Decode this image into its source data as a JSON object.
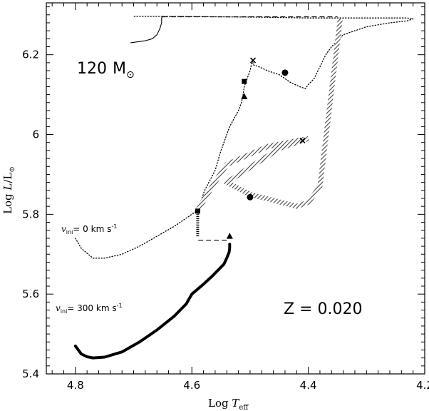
{
  "chart_data": {
    "type": "line",
    "title": "",
    "xlabel": "Log T_eff",
    "ylabel": "Log L/L_sun",
    "xlim": [
      4.85,
      4.2
    ],
    "ylim": [
      5.4,
      6.33
    ],
    "x_reversed": true,
    "x_ticks": [
      4.8,
      4.6,
      4.4,
      4.2
    ],
    "y_ticks": [
      5.4,
      5.6,
      5.8,
      6.0,
      6.2
    ],
    "x_tick_labels": [
      "4.8",
      "4.6",
      "4.4",
      "4.2"
    ],
    "y_tick_labels": [
      "5.4",
      "5.6",
      "5.8",
      "6",
      "6.2"
    ],
    "annotations": {
      "mass_value": "120",
      "mass_unit": "M",
      "metallicity": "Z  =  0.020",
      "vini_zero": "= 0 km s",
      "vini_300": "= 300 km s"
    },
    "series": [
      {
        "style": "dotted",
        "color": "#000000",
        "x": [
          4.8,
          4.79,
          4.77,
          4.75,
          4.72,
          4.69,
          4.66,
          4.63,
          4.61,
          4.59,
          4.578,
          4.56,
          4.55,
          4.535,
          4.52,
          4.515,
          4.512,
          4.51,
          4.505,
          4.5,
          4.497,
          4.495,
          4.495,
          4.485,
          4.47,
          4.45,
          4.43,
          4.415,
          4.405,
          4.4,
          4.39,
          4.38,
          4.37,
          4.36,
          4.34,
          4.3,
          4.26,
          4.23,
          4.22,
          4.23,
          4.3,
          4.4,
          4.48,
          4.55,
          4.62,
          4.7
        ],
        "y": [
          5.74,
          5.715,
          5.69,
          5.69,
          5.7,
          5.72,
          5.745,
          5.77,
          5.79,
          5.81,
          5.86,
          5.91,
          5.96,
          6.02,
          6.06,
          6.08,
          6.1,
          6.12,
          6.14,
          6.16,
          6.18,
          6.185,
          6.175,
          6.17,
          6.16,
          6.15,
          6.13,
          6.12,
          6.115,
          6.125,
          6.14,
          6.17,
          6.2,
          6.22,
          6.25,
          6.27,
          6.28,
          6.285,
          6.29,
          6.292,
          6.292,
          6.292,
          6.294,
          6.295,
          6.296,
          6.296
        ]
      },
      {
        "style": "dashed",
        "color": "#000000",
        "x": [
          4.54,
          4.59
        ],
        "y": [
          5.735,
          5.735
        ]
      },
      {
        "style": "dashed",
        "color": "#000000",
        "x": [
          4.65,
          4.35
        ],
        "y": [
          6.295,
          6.295
        ]
      },
      {
        "style": "solid-thin",
        "color": "#000000",
        "x": [
          4.705,
          4.68,
          4.668,
          4.66,
          4.655,
          4.652,
          4.652,
          4.65
        ],
        "y": [
          6.23,
          6.235,
          6.24,
          6.25,
          6.265,
          6.28,
          6.292,
          6.296
        ]
      },
      {
        "style": "solid-thick",
        "color": "#000000",
        "x": [
          4.8,
          4.79,
          4.78,
          4.77,
          4.75,
          4.72,
          4.69,
          4.66,
          4.63,
          4.61,
          4.6,
          4.58,
          4.565,
          4.555,
          4.545,
          4.54,
          4.536,
          4.535,
          4.535
        ],
        "y": [
          5.47,
          5.45,
          5.443,
          5.44,
          5.442,
          5.455,
          5.48,
          5.51,
          5.545,
          5.575,
          5.6,
          5.625,
          5.645,
          5.66,
          5.675,
          5.69,
          5.705,
          5.715,
          5.725
        ]
      },
      {
        "style": "hatched",
        "color": "#555555",
        "x": [
          4.59,
          4.59,
          4.565,
          4.54,
          4.47,
          4.4,
          4.45,
          4.54,
          4.5,
          4.42,
          4.4,
          4.38,
          4.345
        ],
        "y": [
          5.8,
          5.81,
          5.87,
          5.925,
          5.97,
          5.99,
          5.965,
          5.88,
          5.85,
          5.82,
          5.83,
          5.87,
          6.29
        ]
      },
      {
        "style": "vertical-hatch",
        "color": "#000000",
        "x": [
          4.59,
          4.59
        ],
        "y": [
          5.745,
          5.8
        ]
      }
    ],
    "markers": [
      {
        "shape": "triangle",
        "x": 4.535,
        "y": 5.745
      },
      {
        "shape": "square",
        "x": 4.59,
        "y": 5.808
      },
      {
        "shape": "circle",
        "x": 4.5,
        "y": 5.843
      },
      {
        "shape": "cross",
        "x": 4.41,
        "y": 5.985
      },
      {
        "shape": "triangle",
        "x": 4.51,
        "y": 6.095
      },
      {
        "shape": "square",
        "x": 4.51,
        "y": 6.133
      },
      {
        "shape": "circle",
        "x": 4.44,
        "y": 6.155
      },
      {
        "shape": "cross",
        "x": 4.495,
        "y": 6.186
      }
    ]
  }
}
